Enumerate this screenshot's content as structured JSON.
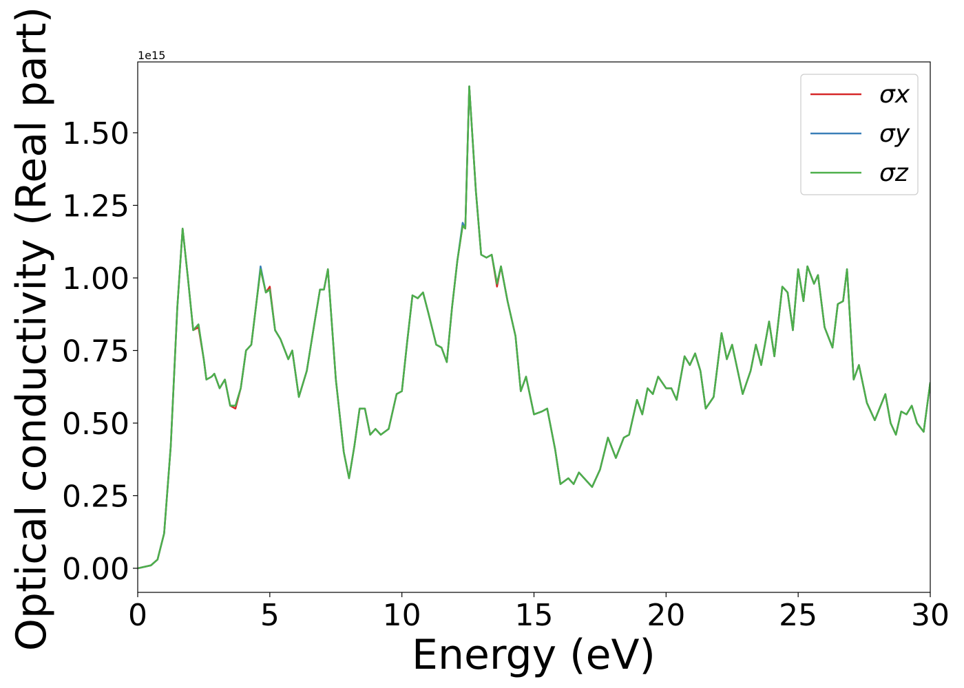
{
  "chart_data": {
    "type": "line",
    "xlabel": "Energy (eV)",
    "ylabel": "Optical conductivity (Real part)",
    "offset_label": "1e15",
    "xlim": [
      0,
      30
    ],
    "ylim": [
      -0.083,
      1.744
    ],
    "xticks": [
      0,
      5,
      10,
      15,
      20,
      25,
      30
    ],
    "yticks": [
      {
        "value": 0,
        "label": "0.00"
      },
      {
        "value": 0.25,
        "label": "0.25"
      },
      {
        "value": 0.5,
        "label": "0.50"
      },
      {
        "value": 0.75,
        "label": "0.75"
      },
      {
        "value": 1,
        "label": "1.00"
      },
      {
        "value": 1.25,
        "label": "1.25"
      },
      {
        "value": 1.5,
        "label": "1.50"
      }
    ],
    "legend": "upper right",
    "x": [
      0,
      0.5,
      0.75,
      1.0,
      1.25,
      1.5,
      1.7,
      1.9,
      2.1,
      2.3,
      2.5,
      2.6,
      2.8,
      2.9,
      3.1,
      3.3,
      3.5,
      3.7,
      3.9,
      4.1,
      4.3,
      4.5,
      4.65,
      4.85,
      5.0,
      5.2,
      5.4,
      5.7,
      5.85,
      6.1,
      6.4,
      6.7,
      6.9,
      7.05,
      7.2,
      7.5,
      7.8,
      8.0,
      8.2,
      8.4,
      8.6,
      8.8,
      9.0,
      9.2,
      9.5,
      9.8,
      10.0,
      10.2,
      10.4,
      10.6,
      10.8,
      11.0,
      11.3,
      11.5,
      11.7,
      11.9,
      12.1,
      12.3,
      12.4,
      12.55,
      12.8,
      13.0,
      13.2,
      13.4,
      13.6,
      13.75,
      14.0,
      14.3,
      14.5,
      14.7,
      15.0,
      15.3,
      15.5,
      15.8,
      16.0,
      16.3,
      16.5,
      16.7,
      17.0,
      17.2,
      17.5,
      17.8,
      18.1,
      18.4,
      18.6,
      18.9,
      19.1,
      19.3,
      19.5,
      19.7,
      20.0,
      20.2,
      20.4,
      20.7,
      20.9,
      21.1,
      21.3,
      21.5,
      21.8,
      22.1,
      22.3,
      22.5,
      22.9,
      23.2,
      23.4,
      23.6,
      23.9,
      24.1,
      24.4,
      24.6,
      24.8,
      25.0,
      25.2,
      25.35,
      25.6,
      25.75,
      26.0,
      26.3,
      26.5,
      26.7,
      26.85,
      27.1,
      27.3,
      27.6,
      27.9,
      28.3,
      28.5,
      28.7,
      28.9,
      29.1,
      29.3,
      29.5,
      29.75,
      30.0
    ],
    "series": [
      {
        "name": "σx",
        "color": "#d62728",
        "values": [
          0.0,
          0.01,
          0.03,
          0.12,
          0.42,
          0.9,
          1.17,
          1.0,
          0.82,
          0.83,
          0.72,
          0.65,
          0.66,
          0.67,
          0.62,
          0.65,
          0.56,
          0.55,
          0.62,
          0.75,
          0.77,
          0.92,
          1.03,
          0.95,
          0.97,
          0.82,
          0.79,
          0.72,
          0.75,
          0.59,
          0.68,
          0.85,
          0.96,
          0.96,
          1.03,
          0.65,
          0.4,
          0.31,
          0.42,
          0.55,
          0.55,
          0.46,
          0.48,
          0.46,
          0.48,
          0.6,
          0.61,
          0.78,
          0.94,
          0.93,
          0.95,
          0.88,
          0.77,
          0.76,
          0.71,
          0.9,
          1.06,
          1.18,
          1.17,
          1.66,
          1.3,
          1.08,
          1.07,
          1.08,
          0.97,
          1.04,
          0.92,
          0.8,
          0.61,
          0.66,
          0.53,
          0.54,
          0.55,
          0.41,
          0.29,
          0.31,
          0.29,
          0.33,
          0.3,
          0.28,
          0.34,
          0.45,
          0.38,
          0.45,
          0.46,
          0.58,
          0.53,
          0.62,
          0.6,
          0.66,
          0.62,
          0.62,
          0.58,
          0.73,
          0.7,
          0.74,
          0.68,
          0.55,
          0.59,
          0.81,
          0.72,
          0.77,
          0.6,
          0.68,
          0.77,
          0.7,
          0.85,
          0.73,
          0.97,
          0.95,
          0.82,
          1.03,
          0.92,
          1.04,
          0.98,
          1.01,
          0.83,
          0.76,
          0.91,
          0.92,
          1.03,
          0.65,
          0.7,
          0.57,
          0.51,
          0.6,
          0.5,
          0.46,
          0.54,
          0.53,
          0.56,
          0.5,
          0.47,
          0.64
        ]
      },
      {
        "name": "σy",
        "color": "#3a7fb8",
        "values": [
          0.0,
          0.01,
          0.03,
          0.12,
          0.42,
          0.9,
          1.17,
          1.0,
          0.82,
          0.84,
          0.72,
          0.65,
          0.66,
          0.67,
          0.62,
          0.65,
          0.56,
          0.56,
          0.62,
          0.75,
          0.77,
          0.92,
          1.04,
          0.95,
          0.96,
          0.82,
          0.79,
          0.72,
          0.75,
          0.59,
          0.68,
          0.85,
          0.96,
          0.96,
          1.03,
          0.65,
          0.4,
          0.31,
          0.42,
          0.55,
          0.55,
          0.46,
          0.48,
          0.46,
          0.48,
          0.6,
          0.61,
          0.78,
          0.94,
          0.93,
          0.95,
          0.88,
          0.77,
          0.76,
          0.71,
          0.9,
          1.06,
          1.19,
          1.17,
          1.66,
          1.3,
          1.08,
          1.07,
          1.08,
          0.98,
          1.04,
          0.92,
          0.8,
          0.61,
          0.66,
          0.53,
          0.54,
          0.55,
          0.41,
          0.29,
          0.31,
          0.29,
          0.33,
          0.3,
          0.28,
          0.34,
          0.45,
          0.38,
          0.45,
          0.46,
          0.58,
          0.53,
          0.62,
          0.6,
          0.66,
          0.62,
          0.62,
          0.58,
          0.73,
          0.7,
          0.74,
          0.68,
          0.55,
          0.59,
          0.81,
          0.72,
          0.77,
          0.6,
          0.68,
          0.77,
          0.7,
          0.85,
          0.73,
          0.97,
          0.95,
          0.82,
          1.03,
          0.92,
          1.04,
          0.98,
          1.01,
          0.83,
          0.76,
          0.91,
          0.92,
          1.03,
          0.65,
          0.7,
          0.57,
          0.51,
          0.6,
          0.5,
          0.46,
          0.54,
          0.53,
          0.56,
          0.5,
          0.47,
          0.64
        ]
      },
      {
        "name": "σz",
        "color": "#4daf4a",
        "values": [
          0.0,
          0.01,
          0.03,
          0.12,
          0.42,
          0.9,
          1.17,
          1.0,
          0.82,
          0.84,
          0.72,
          0.65,
          0.66,
          0.67,
          0.62,
          0.65,
          0.56,
          0.56,
          0.62,
          0.75,
          0.77,
          0.92,
          1.03,
          0.95,
          0.96,
          0.82,
          0.79,
          0.72,
          0.75,
          0.59,
          0.68,
          0.85,
          0.96,
          0.96,
          1.03,
          0.65,
          0.4,
          0.31,
          0.42,
          0.55,
          0.55,
          0.46,
          0.48,
          0.46,
          0.48,
          0.6,
          0.61,
          0.78,
          0.94,
          0.93,
          0.95,
          0.88,
          0.77,
          0.76,
          0.71,
          0.9,
          1.06,
          1.18,
          1.17,
          1.66,
          1.3,
          1.08,
          1.07,
          1.08,
          0.98,
          1.04,
          0.92,
          0.8,
          0.61,
          0.66,
          0.53,
          0.54,
          0.55,
          0.41,
          0.29,
          0.31,
          0.29,
          0.33,
          0.3,
          0.28,
          0.34,
          0.45,
          0.38,
          0.45,
          0.46,
          0.58,
          0.53,
          0.62,
          0.6,
          0.66,
          0.62,
          0.62,
          0.58,
          0.73,
          0.7,
          0.74,
          0.68,
          0.55,
          0.59,
          0.81,
          0.72,
          0.77,
          0.6,
          0.68,
          0.77,
          0.7,
          0.85,
          0.73,
          0.97,
          0.95,
          0.82,
          1.03,
          0.92,
          1.04,
          0.98,
          1.01,
          0.83,
          0.76,
          0.91,
          0.92,
          1.03,
          0.65,
          0.7,
          0.57,
          0.51,
          0.6,
          0.5,
          0.46,
          0.54,
          0.53,
          0.56,
          0.5,
          0.47,
          0.64
        ]
      }
    ]
  }
}
